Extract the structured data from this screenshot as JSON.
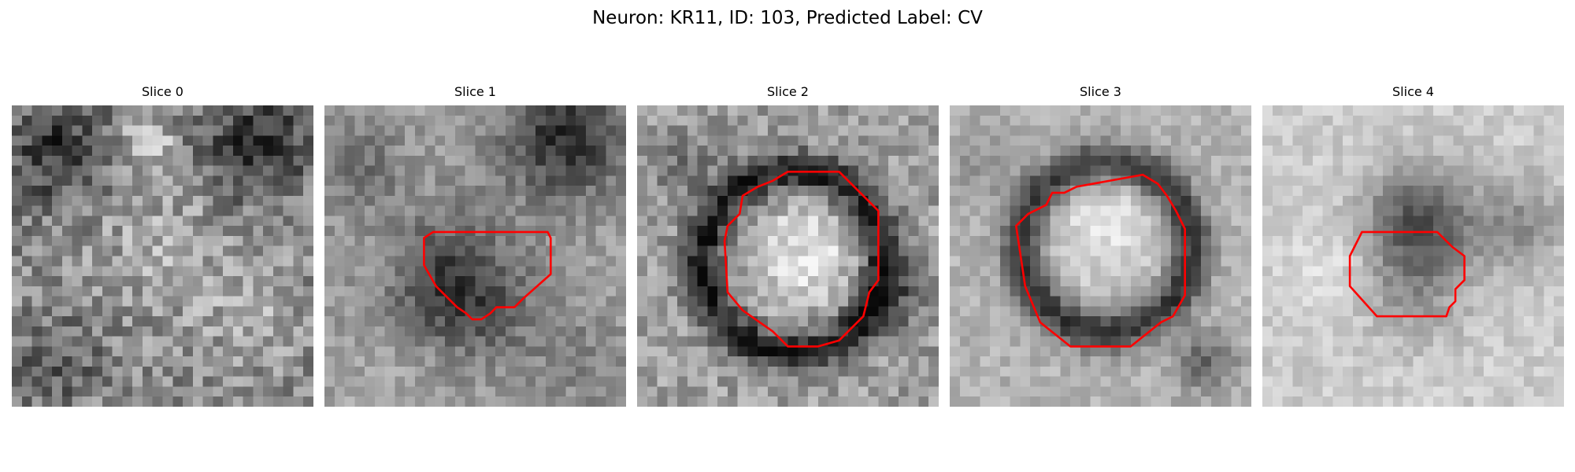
{
  "figure": {
    "title": "Neuron: KR11, ID: 103, Predicted Label: CV"
  },
  "colors": {
    "contour": "#ff0000",
    "background": "#ffffff"
  },
  "slices": [
    {
      "label": "Slice 0",
      "has_contour": false
    },
    {
      "label": "Slice 1",
      "has_contour": true
    },
    {
      "label": "Slice 2",
      "has_contour": true
    },
    {
      "label": "Slice 3",
      "has_contour": true
    },
    {
      "label": "Slice 4",
      "has_contour": true
    }
  ]
}
